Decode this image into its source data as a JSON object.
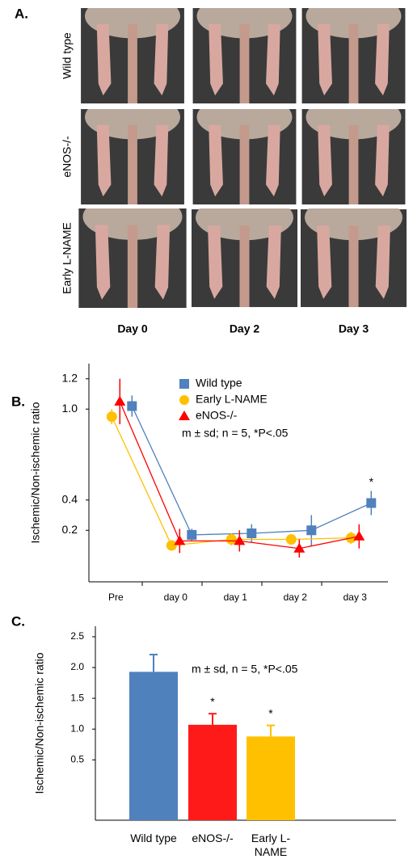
{
  "panel_a": {
    "label": "A.",
    "rows": [
      "Wild type",
      "eNOS-/-",
      "Early L-NAME"
    ],
    "columns": [
      "Day 0",
      "Day 2",
      "Day 3"
    ]
  },
  "chart_data": [
    {
      "type": "line",
      "label": "B.",
      "y_label": "Ischemic/Non-ischemic ratio",
      "categories": [
        "Pre",
        "day 0",
        "day 1",
        "day 2",
        "day 3"
      ],
      "series": [
        {
          "name": "Wild type",
          "color": "#4f81bd",
          "marker": "square",
          "values": [
            1.02,
            0.17,
            0.18,
            0.2,
            0.38
          ],
          "errors": [
            0.07,
            0.04,
            0.06,
            0.1,
            0.08
          ]
        },
        {
          "name": "Early  L-NAME",
          "color": "#ffc000",
          "marker": "circle",
          "values": [
            0.95,
            0.1,
            0.14,
            0.14,
            0.15
          ],
          "errors": [
            0.05,
            0.03,
            0.04,
            0.03,
            0.04
          ]
        },
        {
          "name": "eNOS-/-",
          "color": "#ff0000",
          "marker": "triangle",
          "values": [
            1.05,
            0.13,
            0.13,
            0.08,
            0.16
          ],
          "errors": [
            0.15,
            0.08,
            0.07,
            0.06,
            0.08
          ]
        }
      ],
      "ylim": [
        -0.14,
        1.3
      ],
      "yticks": [
        0.2,
        0.4,
        {
          "value": 1,
          "label": "1.0"
        },
        1.2
      ],
      "note": "m ± sd; n = 5, *P<.05",
      "significance": "*"
    },
    {
      "type": "bar",
      "label": "C.",
      "y_label": "Ischemic/Non-ischemic ratio",
      "categories": [
        "Wild type",
        "eNOS-/-",
        "Early L-NAME"
      ],
      "values": [
        1.93,
        1.07,
        0.88
      ],
      "errors": [
        0.28,
        0.18,
        0.18
      ],
      "colors": [
        "#4f81bd",
        "#ff1a1a",
        "#ffc000"
      ],
      "ylim": [
        -0.48,
        2.67
      ],
      "yticks": [
        0.5,
        {
          "value": 1,
          "label": "1.0"
        },
        1.5,
        {
          "value": 2,
          "label": "2.0"
        },
        2.5
      ],
      "note": "m ± sd, n = 5, *P<.05",
      "significance": "*"
    }
  ]
}
